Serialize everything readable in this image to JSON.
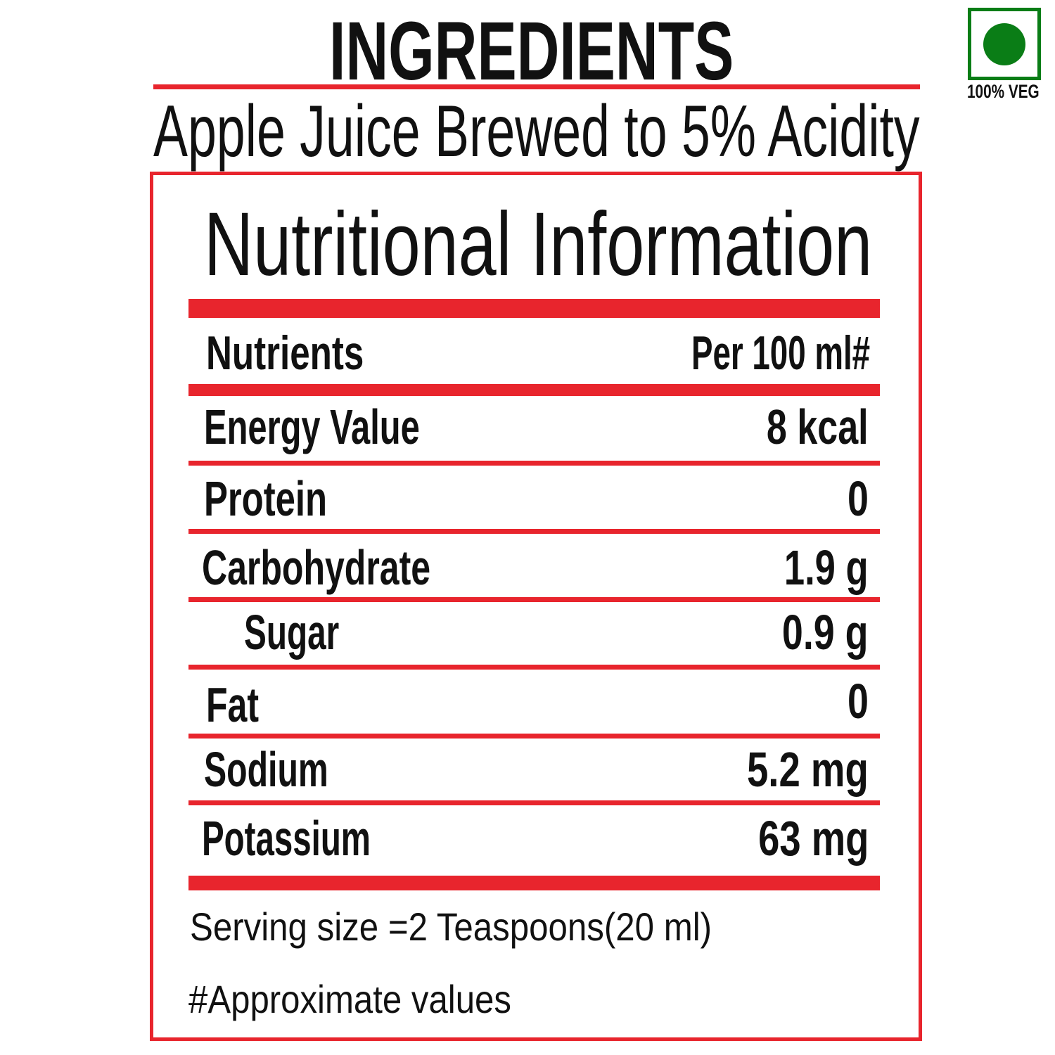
{
  "colors": {
    "accent": "#e8252d",
    "veg": "#0a7d16"
  },
  "header": {
    "title": "INGREDIENTS",
    "ingredients": "Apple Juice Brewed to 5% Acidity"
  },
  "veg_badge": {
    "icon": "veg-symbol-icon",
    "label": "100% VEG"
  },
  "panel": {
    "title": "Nutritional Information",
    "columns": [
      "Nutrients",
      "Per 100 ml#"
    ],
    "rows": [
      {
        "name": "Energy Value",
        "value": "8 kcal"
      },
      {
        "name": "Protein",
        "value": "0"
      },
      {
        "name": "Carbohydrate",
        "value": "1.9 g"
      },
      {
        "name": "Sugar",
        "value": "0.9 g"
      },
      {
        "name": "Fat",
        "value": "0"
      },
      {
        "name": "Sodium",
        "value": "5.2 mg"
      },
      {
        "name": "Potassium",
        "value": "63 mg"
      }
    ],
    "serving": "Serving size =2 Teaspoons(20 ml)",
    "note": "#Approximate values"
  }
}
